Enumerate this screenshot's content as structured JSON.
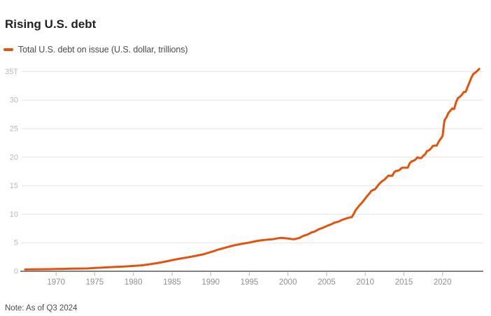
{
  "title": "Rising U.S. debt",
  "legend": {
    "label": "Total U.S. debt on issue (U.S. dollar, trillions)"
  },
  "note": "Note: As of Q3 2024",
  "colors": {
    "line": "#e4530c",
    "grid": "#e4e4e4",
    "axis": "#818181",
    "tick": "#b0b0b0",
    "x_label": "#8e9092",
    "y_label": "#b6b8ba",
    "title": "#212121",
    "text": "#4b4b4b",
    "background": "#ffffff"
  },
  "chart_data": {
    "type": "line",
    "title": "Rising U.S. debt",
    "series": [
      {
        "name": "Total U.S. debt on issue (U.S. dollar, trillions)",
        "color": "#e4530c",
        "points": [
          [
            1966,
            0.32
          ],
          [
            1967,
            0.34
          ],
          [
            1968,
            0.36
          ],
          [
            1969,
            0.37
          ],
          [
            1970,
            0.39
          ],
          [
            1971,
            0.42
          ],
          [
            1972,
            0.45
          ],
          [
            1973,
            0.48
          ],
          [
            1974,
            0.49
          ],
          [
            1975,
            0.58
          ],
          [
            1976,
            0.65
          ],
          [
            1977,
            0.72
          ],
          [
            1978,
            0.79
          ],
          [
            1979,
            0.85
          ],
          [
            1980,
            0.93
          ],
          [
            1981,
            1.03
          ],
          [
            1982,
            1.2
          ],
          [
            1983,
            1.41
          ],
          [
            1984,
            1.66
          ],
          [
            1985,
            1.95
          ],
          [
            1986,
            2.21
          ],
          [
            1987,
            2.43
          ],
          [
            1988,
            2.68
          ],
          [
            1989,
            2.95
          ],
          [
            1990,
            3.36
          ],
          [
            1991,
            3.8
          ],
          [
            1992,
            4.18
          ],
          [
            1993,
            4.54
          ],
          [
            1994,
            4.8
          ],
          [
            1995,
            5.02
          ],
          [
            1996,
            5.32
          ],
          [
            1997,
            5.5
          ],
          [
            1998,
            5.61
          ],
          [
            1999,
            5.85
          ],
          [
            2000,
            5.75
          ],
          [
            2000.75,
            5.6
          ],
          [
            2001.5,
            5.85
          ],
          [
            2002,
            6.21
          ],
          [
            2002.5,
            6.41
          ],
          [
            2003,
            6.78
          ],
          [
            2003.5,
            7.0
          ],
          [
            2004,
            7.38
          ],
          [
            2004.5,
            7.6
          ],
          [
            2005,
            7.93
          ],
          [
            2005.5,
            8.17
          ],
          [
            2006,
            8.51
          ],
          [
            2006.5,
            8.68
          ],
          [
            2007,
            9.01
          ],
          [
            2007.5,
            9.23
          ],
          [
            2008,
            9.44
          ],
          [
            2008.25,
            9.49
          ],
          [
            2008.5,
            10.02
          ],
          [
            2008.75,
            10.7
          ],
          [
            2009,
            11.13
          ],
          [
            2009.25,
            11.55
          ],
          [
            2009.5,
            11.91
          ],
          [
            2009.75,
            12.31
          ],
          [
            2010,
            12.77
          ],
          [
            2010.25,
            13.2
          ],
          [
            2010.5,
            13.56
          ],
          [
            2010.75,
            14.03
          ],
          [
            2011,
            14.27
          ],
          [
            2011.25,
            14.34
          ],
          [
            2011.5,
            14.79
          ],
          [
            2011.75,
            15.22
          ],
          [
            2012,
            15.58
          ],
          [
            2012.25,
            15.86
          ],
          [
            2012.5,
            16.07
          ],
          [
            2012.75,
            16.43
          ],
          [
            2013,
            16.77
          ],
          [
            2013.25,
            16.74
          ],
          [
            2013.5,
            16.74
          ],
          [
            2013.75,
            17.35
          ],
          [
            2014,
            17.6
          ],
          [
            2014.25,
            17.63
          ],
          [
            2014.5,
            17.82
          ],
          [
            2014.75,
            18.14
          ],
          [
            2015,
            18.15
          ],
          [
            2015.25,
            18.15
          ],
          [
            2015.5,
            18.15
          ],
          [
            2015.75,
            18.92
          ],
          [
            2016,
            19.26
          ],
          [
            2016.25,
            19.38
          ],
          [
            2016.5,
            19.57
          ],
          [
            2016.75,
            19.98
          ],
          [
            2017,
            19.85
          ],
          [
            2017.25,
            19.84
          ],
          [
            2017.5,
            20.24
          ],
          [
            2017.75,
            20.49
          ],
          [
            2018,
            21.09
          ],
          [
            2018.25,
            21.2
          ],
          [
            2018.5,
            21.52
          ],
          [
            2018.75,
            21.97
          ],
          [
            2019,
            22.03
          ],
          [
            2019.25,
            22.02
          ],
          [
            2019.5,
            22.72
          ],
          [
            2019.75,
            23.2
          ],
          [
            2020,
            23.69
          ],
          [
            2020.25,
            26.48
          ],
          [
            2020.5,
            26.95
          ],
          [
            2020.75,
            27.75
          ],
          [
            2021,
            28.13
          ],
          [
            2021.25,
            28.53
          ],
          [
            2021.5,
            28.43
          ],
          [
            2021.75,
            29.62
          ],
          [
            2022,
            30.37
          ],
          [
            2022.25,
            30.57
          ],
          [
            2022.5,
            30.93
          ],
          [
            2022.75,
            31.42
          ],
          [
            2023,
            31.46
          ],
          [
            2023.25,
            32.33
          ],
          [
            2023.5,
            33.17
          ],
          [
            2023.75,
            34.0
          ],
          [
            2024,
            34.59
          ],
          [
            2024.25,
            34.83
          ],
          [
            2024.75,
            35.46
          ]
        ]
      }
    ],
    "xlabel": "",
    "ylabel": "",
    "unit": "U.S. dollar, trillions",
    "x_range": [
      1966,
      2025.3
    ],
    "y_range": [
      0,
      35
    ],
    "x_tick_values": [
      1970,
      1975,
      1980,
      1985,
      1990,
      1995,
      2000,
      2005,
      2010,
      2015,
      2020
    ],
    "x_tick_labels": [
      "1970",
      "1975",
      "1980",
      "1985",
      "1990",
      "1995",
      "2000",
      "2005",
      "2010",
      "2015",
      "2020"
    ],
    "y_tick_values": [
      0,
      5,
      10,
      15,
      20,
      25,
      30,
      35
    ],
    "y_tick_labels": [
      "0",
      "5",
      "10",
      "15",
      "20",
      "25",
      "30",
      "35T"
    ],
    "grid": "horizontal",
    "legend_position": "top-left",
    "annotation": "Note: As of Q3 2024"
  }
}
